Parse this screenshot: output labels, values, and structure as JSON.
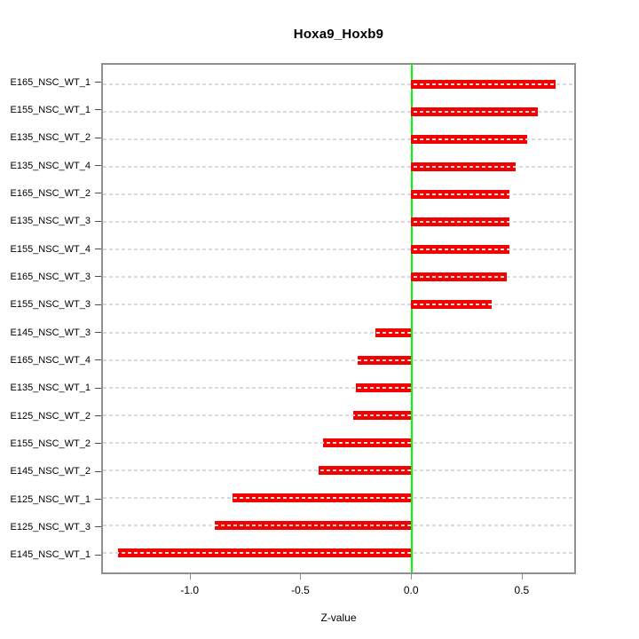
{
  "title": "Hoxa9_Hoxb9",
  "chart_data": {
    "type": "bar",
    "orientation": "horizontal",
    "title": "Hoxa9_Hoxb9",
    "xlabel": "Z-value",
    "ylabel": "",
    "categories": [
      "E165_NSC_WT_1",
      "E155_NSC_WT_1",
      "E135_NSC_WT_2",
      "E135_NSC_WT_4",
      "E165_NSC_WT_2",
      "E135_NSC_WT_3",
      "E155_NSC_WT_4",
      "E165_NSC_WT_3",
      "E155_NSC_WT_3",
      "E145_NSC_WT_3",
      "E165_NSC_WT_4",
      "E135_NSC_WT_1",
      "E125_NSC_WT_2",
      "E155_NSC_WT_2",
      "E145_NSC_WT_2",
      "E125_NSC_WT_1",
      "E125_NSC_WT_3",
      "E145_NSC_WT_1"
    ],
    "values": [
      0.66,
      0.58,
      0.53,
      0.48,
      0.45,
      0.45,
      0.45,
      0.44,
      0.37,
      -0.16,
      -0.24,
      -0.25,
      -0.26,
      -0.4,
      -0.42,
      -0.81,
      -0.89,
      -1.33
    ],
    "xlim": [
      -1.4,
      0.745
    ],
    "xticks": [
      -1.0,
      -0.5,
      0.0,
      0.5
    ],
    "xtick_labels": [
      "-1.0",
      "-0.5",
      "0.0",
      "0.5"
    ],
    "zero_line": 0,
    "grid": "dashed-horizontal-per-row",
    "legend": "none",
    "colors": {
      "bar": "#f40000",
      "zero_line": "#00ff00",
      "box": "#8f8f8f",
      "grid": "#dadada",
      "text": "#000000"
    }
  }
}
